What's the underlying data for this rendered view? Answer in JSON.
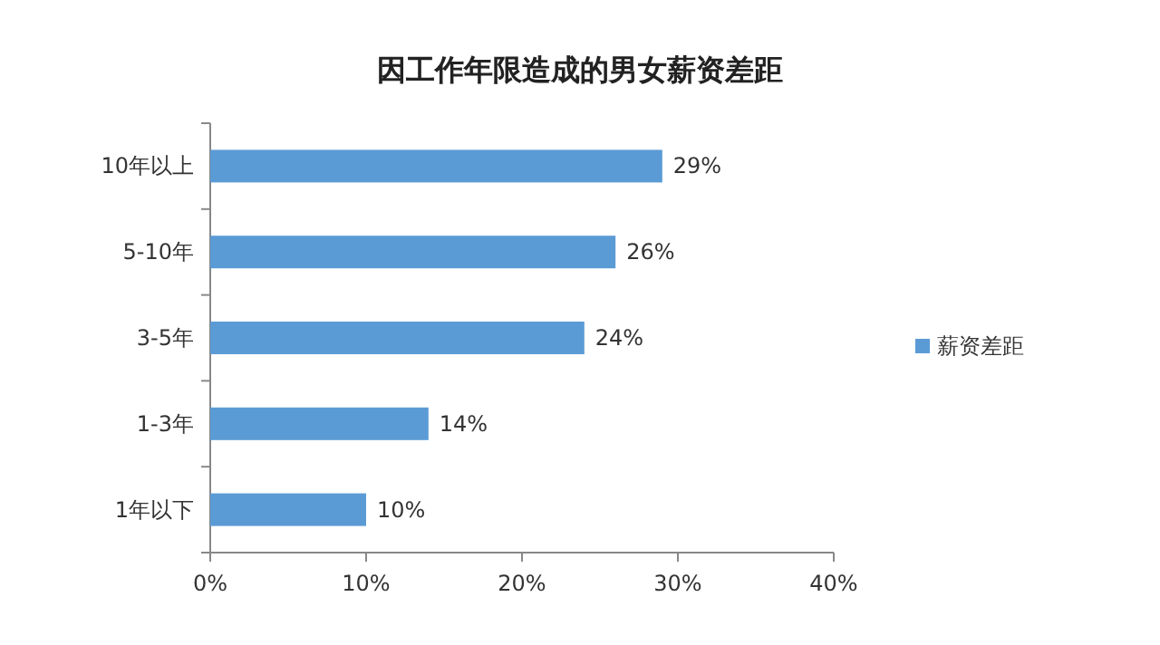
{
  "chart_data": {
    "type": "bar",
    "orientation": "horizontal",
    "title": "因工作年限造成的男女薪资差距",
    "categories": [
      "10年以上",
      "5-10年",
      "3-5年",
      "1-3年",
      "1年以下"
    ],
    "series": [
      {
        "name": "薪资差距",
        "color": "#5b9bd5",
        "values": [
          29,
          26,
          24,
          14,
          10
        ],
        "value_labels": [
          "29%",
          "26%",
          "24%",
          "14%",
          "10%"
        ]
      }
    ],
    "xlim": [
      0,
      40
    ],
    "xticks": [
      {
        "value": 0,
        "label": "0%"
      },
      {
        "value": 10,
        "label": "10%"
      },
      {
        "value": 20,
        "label": "20%"
      },
      {
        "value": 30,
        "label": "30%"
      },
      {
        "value": 40,
        "label": "40%"
      }
    ],
    "grid": false,
    "legend": "right"
  }
}
